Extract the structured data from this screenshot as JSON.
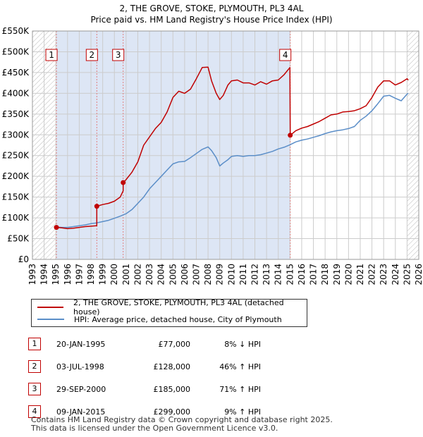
{
  "title_line1": "2, THE GROVE, STOKE, PLYMOUTH, PL3 4AL",
  "title_line2": "Price paid vs. HM Land Registry's House Price Index (HPI)",
  "colors": {
    "property": "#c00000",
    "hpi": "#5b8ec8",
    "shade": "#dde6f5",
    "vline": "#e08080",
    "grid": "#cccccc"
  },
  "chart_data": {
    "type": "line",
    "title": "Price paid vs. HM Land Registry's House Price Index (HPI)",
    "xlim": [
      1993,
      2026
    ],
    "ylim": [
      0,
      550000
    ],
    "x_ticks": [
      1993,
      1994,
      1995,
      1996,
      1997,
      1998,
      1999,
      2000,
      2001,
      2002,
      2003,
      2004,
      2005,
      2006,
      2007,
      2008,
      2009,
      2010,
      2011,
      2012,
      2013,
      2014,
      2015,
      2016,
      2017,
      2018,
      2019,
      2020,
      2021,
      2022,
      2023,
      2024,
      2025,
      2026
    ],
    "y_ticks": [
      0,
      50000,
      100000,
      150000,
      200000,
      250000,
      300000,
      350000,
      400000,
      450000,
      500000,
      550000
    ],
    "y_tick_labels": [
      "£0",
      "£50K",
      "£100K",
      "£150K",
      "£200K",
      "£250K",
      "£300K",
      "£350K",
      "£400K",
      "£450K",
      "£500K",
      "£550K"
    ],
    "shaded_ranges": [
      [
        1995.05,
        2015.02
      ]
    ],
    "hatched_ranges": [
      [
        1993,
        1995.05
      ],
      [
        2025.0,
        2026
      ]
    ],
    "series": [
      {
        "name": "2, THE GROVE, STOKE, PLYMOUTH, PL3 4AL (detached house)",
        "x": [
          1995.05,
          1995.5,
          1996,
          1996.5,
          1997,
          1997.5,
          1998,
          1998.5,
          1998.5,
          1999,
          1999.5,
          2000,
          2000.5,
          2000.75,
          2000.75,
          2001,
          2001.5,
          2002,
          2002.5,
          2003,
          2003.5,
          2004,
          2004.5,
          2005,
          2005.5,
          2006,
          2006.5,
          2007,
          2007.5,
          2008,
          2008.3,
          2008.7,
          2009,
          2009.3,
          2009.7,
          2010,
          2010.5,
          2011,
          2011.5,
          2012,
          2012.5,
          2013,
          2013.5,
          2014,
          2014.5,
          2014.99,
          2015.02,
          2015.5,
          2016,
          2016.5,
          2017,
          2017.5,
          2018,
          2018.5,
          2019,
          2019.5,
          2020,
          2020.5,
          2021,
          2021.5,
          2022,
          2022.5,
          2023,
          2023.5,
          2024,
          2024.5,
          2025.0,
          2025.1
        ],
        "values": [
          77000,
          76000,
          74000,
          75000,
          77000,
          79000,
          80000,
          81000,
          128000,
          132000,
          135000,
          140000,
          150000,
          165000,
          185000,
          192000,
          210000,
          235000,
          275000,
          295000,
          315000,
          330000,
          355000,
          390000,
          405000,
          400000,
          410000,
          435000,
          462000,
          463000,
          430000,
          400000,
          385000,
          395000,
          420000,
          430000,
          432000,
          425000,
          425000,
          420000,
          428000,
          422000,
          430000,
          432000,
          445000,
          462000,
          299000,
          310000,
          316000,
          320000,
          326000,
          332000,
          340000,
          348000,
          350000,
          355000,
          356000,
          358000,
          363000,
          370000,
          390000,
          415000,
          430000,
          430000,
          420000,
          426000,
          435000,
          432000
        ]
      },
      {
        "name": "HPI: Average price, detached house, City of Plymouth",
        "x": [
          1995.05,
          1995.5,
          1996,
          1996.5,
          1997,
          1997.5,
          1998,
          1998.5,
          1999,
          1999.5,
          2000,
          2000.5,
          2001,
          2001.5,
          2002,
          2002.5,
          2003,
          2003.5,
          2004,
          2004.5,
          2005,
          2005.5,
          2006,
          2006.5,
          2007,
          2007.5,
          2008,
          2008.3,
          2008.7,
          2009,
          2009.3,
          2009.7,
          2010,
          2010.5,
          2011,
          2011.5,
          2012,
          2012.5,
          2013,
          2013.5,
          2014,
          2014.5,
          2015,
          2015.5,
          2016,
          2016.5,
          2017,
          2017.5,
          2018,
          2018.5,
          2019,
          2019.5,
          2020,
          2020.5,
          2021,
          2021.5,
          2022,
          2022.5,
          2023,
          2023.5,
          2024,
          2024.5,
          2025.0,
          2025.1
        ],
        "values": [
          78000,
          77000,
          77000,
          79000,
          81000,
          83000,
          86000,
          88000,
          91000,
          94000,
          99000,
          104000,
          110000,
          120000,
          135000,
          150000,
          170000,
          185000,
          200000,
          215000,
          230000,
          235000,
          236000,
          245000,
          255000,
          265000,
          271000,
          262000,
          245000,
          225000,
          232000,
          240000,
          248000,
          250000,
          248000,
          250000,
          250000,
          252000,
          256000,
          260000,
          266000,
          270000,
          276000,
          283000,
          287000,
          290000,
          294000,
          298000,
          303000,
          307000,
          310000,
          312000,
          315000,
          320000,
          335000,
          345000,
          358000,
          375000,
          393000,
          395000,
          388000,
          382000,
          398000,
          400000
        ]
      }
    ],
    "sales": [
      {
        "num": "1",
        "x": 1995.05,
        "price": 77000
      },
      {
        "num": "2",
        "x": 1998.5,
        "price": 128000
      },
      {
        "num": "3",
        "x": 2000.75,
        "price": 185000
      },
      {
        "num": "4",
        "x": 2015.02,
        "price": 299000
      }
    ]
  },
  "legend": {
    "property_label": "2, THE GROVE, STOKE, PLYMOUTH, PL3 4AL (detached house)",
    "hpi_label": "HPI: Average price, detached house, City of Plymouth"
  },
  "table_rows": [
    {
      "num": "1",
      "date": "20-JAN-1995",
      "price": "£77,000",
      "hpi": "8% ↓ HPI"
    },
    {
      "num": "2",
      "date": "03-JUL-1998",
      "price": "£128,000",
      "hpi": "46% ↑ HPI"
    },
    {
      "num": "3",
      "date": "29-SEP-2000",
      "price": "£185,000",
      "hpi": "71% ↑ HPI"
    },
    {
      "num": "4",
      "date": "09-JAN-2015",
      "price": "£299,000",
      "hpi": "9% ↑ HPI"
    }
  ],
  "footer_line1": "Contains HM Land Registry data © Crown copyright and database right 2025.",
  "footer_line2": "This data is licensed under the Open Government Licence v3.0."
}
